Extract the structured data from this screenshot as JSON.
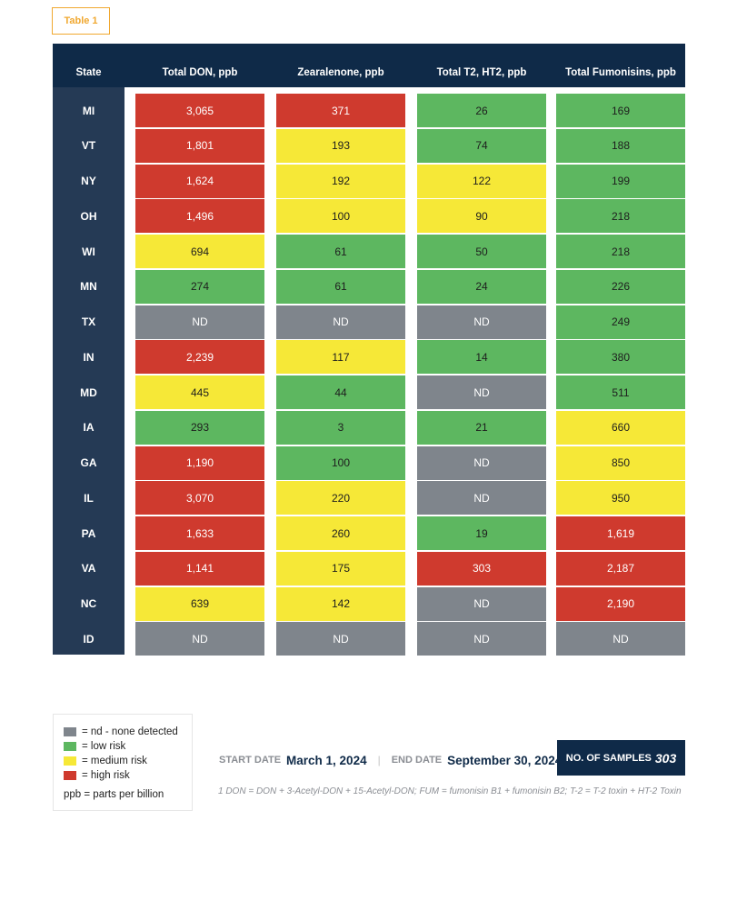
{
  "tag": "Table 1",
  "headers": [
    "State",
    "Total DON, ppb",
    "Zearalenone, ppb",
    "Total T2, HT2, ppb",
    "Total Fumonisins, ppb"
  ],
  "rows": [
    {
      "state": "MI",
      "values": [
        "3,065",
        "371",
        "26",
        "169"
      ],
      "levels": [
        "high",
        "high",
        "low",
        "low"
      ]
    },
    {
      "state": "VT",
      "values": [
        "1,801",
        "193",
        "74",
        "188"
      ],
      "levels": [
        "high",
        "med",
        "low",
        "low"
      ]
    },
    {
      "state": "NY",
      "values": [
        "1,624",
        "192",
        "122",
        "199"
      ],
      "levels": [
        "high",
        "med",
        "med",
        "low"
      ]
    },
    {
      "state": "OH",
      "values": [
        "1,496",
        "100",
        "90",
        "218"
      ],
      "levels": [
        "high",
        "med",
        "med",
        "low"
      ]
    },
    {
      "state": "WI",
      "values": [
        "694",
        "61",
        "50",
        "218"
      ],
      "levels": [
        "med",
        "low",
        "low",
        "low"
      ]
    },
    {
      "state": "MN",
      "values": [
        "274",
        "61",
        "24",
        "226"
      ],
      "levels": [
        "low",
        "low",
        "low",
        "low"
      ]
    },
    {
      "state": "TX",
      "values": [
        "ND",
        "ND",
        "ND",
        "249"
      ],
      "levels": [
        "nd",
        "nd",
        "nd",
        "low"
      ]
    },
    {
      "state": "IN",
      "values": [
        "2,239",
        "117",
        "14",
        "380"
      ],
      "levels": [
        "high",
        "med",
        "low",
        "low"
      ]
    },
    {
      "state": "MD",
      "values": [
        "445",
        "44",
        "ND",
        "511"
      ],
      "levels": [
        "med",
        "low",
        "nd",
        "low"
      ]
    },
    {
      "state": "IA",
      "values": [
        "293",
        "3",
        "21",
        "660"
      ],
      "levels": [
        "low",
        "low",
        "low",
        "med"
      ]
    },
    {
      "state": "GA",
      "values": [
        "1,190",
        "100",
        "ND",
        "850"
      ],
      "levels": [
        "high",
        "low",
        "nd",
        "med"
      ]
    },
    {
      "state": "IL",
      "values": [
        "3,070",
        "220",
        "ND",
        "950"
      ],
      "levels": [
        "high",
        "med",
        "nd",
        "med"
      ]
    },
    {
      "state": "PA",
      "values": [
        "1,633",
        "260",
        "19",
        "1,619"
      ],
      "levels": [
        "high",
        "med",
        "low",
        "high"
      ]
    },
    {
      "state": "VA",
      "values": [
        "1,141",
        "175",
        "303",
        "2,187"
      ],
      "levels": [
        "high",
        "med",
        "high",
        "high"
      ]
    },
    {
      "state": "NC",
      "values": [
        "639",
        "142",
        "ND",
        "2,190"
      ],
      "levels": [
        "med",
        "med",
        "nd",
        "high"
      ]
    },
    {
      "state": "ID",
      "values": [
        "ND",
        "ND",
        "ND",
        "ND"
      ],
      "levels": [
        "nd",
        "nd",
        "nd",
        "nd"
      ]
    }
  ],
  "legend": {
    "items": [
      {
        "level": "nd",
        "label": "= nd - none detected"
      },
      {
        "level": "low",
        "label": "= low risk"
      },
      {
        "level": "med",
        "label": "= medium risk"
      },
      {
        "level": "high",
        "label": "= high risk"
      }
    ],
    "note": "ppb = parts per billion"
  },
  "colors": {
    "high": "#cf3a2e",
    "low": "#5db760",
    "med": "#f6e837",
    "nd": "#7f858c",
    "header": "#0f2a48",
    "state_column": "#253a55",
    "tag": "#f0a830"
  },
  "start_date_label": "START DATE",
  "start_date": "March 1, 2024",
  "separator": "|",
  "end_date_label": "END DATE",
  "end_date": "September 30, 2024",
  "samples_label": "NO. OF SAMPLES",
  "samples_count": "303",
  "footnote": "1 DON = DON + 3-Acetyl-DON + 15-Acetyl-DON; FUM = fumonisin B1 + fumonisin B2; T-2 = T-2 toxin + HT-2 Toxin"
}
